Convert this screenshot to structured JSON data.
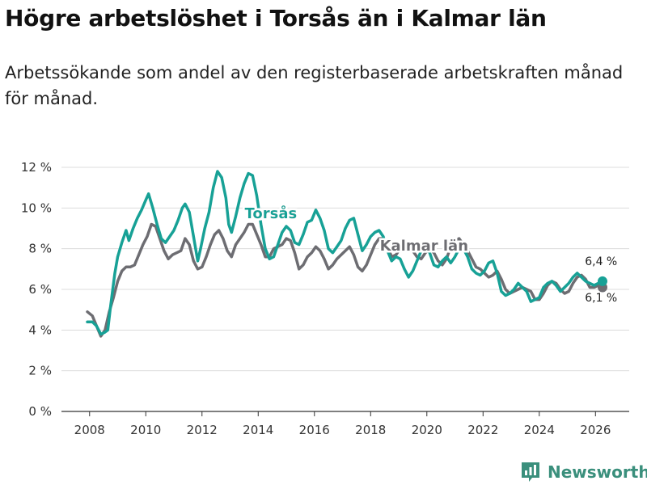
{
  "colors": {
    "torsas": "#17a196",
    "kalmar": "#6d6d72",
    "grid": "#dcdcdc",
    "axis": "#333333",
    "brand": "#3a8f7c"
  },
  "brand": {
    "name": "Newsworthy",
    "icon": "bar-chart-logo-icon"
  },
  "chart_data": {
    "type": "line",
    "title": "Högre arbetslöshet i Torsås än i Kalmar län",
    "subtitle": "Arbetssökande som andel av den registerbaserade arbetskraften månad för månad.",
    "xlabel": "",
    "ylabel": "",
    "ylim": [
      0,
      12
    ],
    "xlim": [
      2007.0,
      2027.2
    ],
    "yticks": [
      0,
      2,
      4,
      6,
      8,
      10,
      12
    ],
    "ytick_labels": [
      "0 %",
      "2 %",
      "4 %",
      "6 %",
      "8 %",
      "10 %",
      "12 %"
    ],
    "xticks": [
      2008,
      2010,
      2012,
      2014,
      2016,
      2018,
      2020,
      2022,
      2024,
      2026
    ],
    "xtick_labels": [
      "2008",
      "2010",
      "2012",
      "2014",
      "2016",
      "2018",
      "2020",
      "2022",
      "2024",
      "2026"
    ],
    "grid": true,
    "series": [
      {
        "name": "Kalmar län",
        "label": "Kalmar län",
        "end_label": "6,1 %",
        "points": [
          [
            2007.92,
            4.9
          ],
          [
            2008.1,
            4.7
          ],
          [
            2008.25,
            4.2
          ],
          [
            2008.4,
            3.7
          ],
          [
            2008.55,
            4.0
          ],
          [
            2008.7,
            4.9
          ],
          [
            2008.85,
            5.6
          ],
          [
            2009.0,
            6.4
          ],
          [
            2009.15,
            6.9
          ],
          [
            2009.3,
            7.1
          ],
          [
            2009.45,
            7.1
          ],
          [
            2009.6,
            7.2
          ],
          [
            2009.75,
            7.7
          ],
          [
            2009.9,
            8.2
          ],
          [
            2010.05,
            8.6
          ],
          [
            2010.2,
            9.2
          ],
          [
            2010.35,
            9.1
          ],
          [
            2010.5,
            8.5
          ],
          [
            2010.65,
            7.9
          ],
          [
            2010.8,
            7.5
          ],
          [
            2010.95,
            7.7
          ],
          [
            2011.1,
            7.8
          ],
          [
            2011.25,
            7.9
          ],
          [
            2011.4,
            8.5
          ],
          [
            2011.55,
            8.2
          ],
          [
            2011.7,
            7.4
          ],
          [
            2011.85,
            7.0
          ],
          [
            2012.0,
            7.1
          ],
          [
            2012.15,
            7.6
          ],
          [
            2012.3,
            8.2
          ],
          [
            2012.45,
            8.7
          ],
          [
            2012.6,
            8.9
          ],
          [
            2012.75,
            8.5
          ],
          [
            2012.9,
            7.9
          ],
          [
            2013.05,
            7.6
          ],
          [
            2013.2,
            8.2
          ],
          [
            2013.35,
            8.5
          ],
          [
            2013.5,
            8.8
          ],
          [
            2013.65,
            9.2
          ],
          [
            2013.8,
            9.2
          ],
          [
            2013.95,
            8.7
          ],
          [
            2014.1,
            8.2
          ],
          [
            2014.25,
            7.6
          ],
          [
            2014.4,
            7.6
          ],
          [
            2014.55,
            8.0
          ],
          [
            2014.7,
            8.1
          ],
          [
            2014.85,
            8.2
          ],
          [
            2015.0,
            8.5
          ],
          [
            2015.15,
            8.4
          ],
          [
            2015.3,
            7.8
          ],
          [
            2015.45,
            7.0
          ],
          [
            2015.6,
            7.2
          ],
          [
            2015.75,
            7.6
          ],
          [
            2015.9,
            7.8
          ],
          [
            2016.05,
            8.1
          ],
          [
            2016.2,
            7.9
          ],
          [
            2016.35,
            7.5
          ],
          [
            2016.5,
            7.0
          ],
          [
            2016.65,
            7.2
          ],
          [
            2016.8,
            7.5
          ],
          [
            2016.95,
            7.7
          ],
          [
            2017.1,
            7.9
          ],
          [
            2017.25,
            8.1
          ],
          [
            2017.4,
            7.7
          ],
          [
            2017.55,
            7.1
          ],
          [
            2017.7,
            6.9
          ],
          [
            2017.85,
            7.2
          ],
          [
            2018.0,
            7.7
          ],
          [
            2018.15,
            8.2
          ],
          [
            2018.3,
            8.5
          ],
          [
            2018.45,
            8.5
          ],
          [
            2018.6,
            8.1
          ],
          [
            2018.75,
            7.6
          ],
          [
            2018.9,
            7.7
          ],
          [
            2019.05,
            8.0
          ],
          [
            2019.2,
            8.2
          ],
          [
            2019.35,
            8.3
          ],
          [
            2019.5,
            7.9
          ],
          [
            2019.65,
            7.6
          ],
          [
            2019.8,
            7.5
          ],
          [
            2019.95,
            7.8
          ],
          [
            2020.1,
            8.0
          ],
          [
            2020.25,
            7.8
          ],
          [
            2020.4,
            7.4
          ],
          [
            2020.55,
            7.2
          ],
          [
            2020.7,
            7.5
          ],
          [
            2020.85,
            8.1
          ],
          [
            2021.0,
            8.4
          ],
          [
            2021.15,
            8.5
          ],
          [
            2021.3,
            8.2
          ],
          [
            2021.45,
            7.9
          ],
          [
            2021.6,
            7.5
          ],
          [
            2021.75,
            7.1
          ],
          [
            2021.9,
            7.0
          ],
          [
            2022.05,
            6.8
          ],
          [
            2022.2,
            6.6
          ],
          [
            2022.35,
            6.7
          ],
          [
            2022.5,
            6.9
          ],
          [
            2022.65,
            6.5
          ],
          [
            2022.8,
            6.0
          ],
          [
            2022.95,
            5.8
          ],
          [
            2023.1,
            5.9
          ],
          [
            2023.25,
            6.0
          ],
          [
            2023.4,
            6.1
          ],
          [
            2023.55,
            6.0
          ],
          [
            2023.7,
            5.9
          ],
          [
            2023.85,
            5.5
          ],
          [
            2024.0,
            5.5
          ],
          [
            2024.15,
            5.8
          ],
          [
            2024.3,
            6.2
          ],
          [
            2024.45,
            6.4
          ],
          [
            2024.6,
            6.3
          ],
          [
            2024.75,
            6.0
          ],
          [
            2024.9,
            5.8
          ],
          [
            2025.05,
            5.9
          ],
          [
            2025.2,
            6.3
          ],
          [
            2025.35,
            6.6
          ],
          [
            2025.5,
            6.7
          ],
          [
            2025.65,
            6.5
          ],
          [
            2025.8,
            6.1
          ],
          [
            2025.95,
            6.1
          ],
          [
            2026.1,
            6.2
          ],
          [
            2026.25,
            6.1
          ]
        ]
      },
      {
        "name": "Torsås",
        "label": "Torsås",
        "end_label": "6,4 %",
        "points": [
          [
            2007.92,
            4.4
          ],
          [
            2008.1,
            4.4
          ],
          [
            2008.25,
            4.2
          ],
          [
            2008.4,
            3.8
          ],
          [
            2008.55,
            3.9
          ],
          [
            2008.65,
            4.0
          ],
          [
            2008.75,
            5.2
          ],
          [
            2008.9,
            6.8
          ],
          [
            2009.0,
            7.6
          ],
          [
            2009.15,
            8.3
          ],
          [
            2009.3,
            8.9
          ],
          [
            2009.4,
            8.4
          ],
          [
            2009.55,
            9.0
          ],
          [
            2009.7,
            9.5
          ],
          [
            2009.85,
            9.9
          ],
          [
            2010.0,
            10.4
          ],
          [
            2010.1,
            10.7
          ],
          [
            2010.25,
            10.0
          ],
          [
            2010.4,
            9.2
          ],
          [
            2010.55,
            8.5
          ],
          [
            2010.7,
            8.3
          ],
          [
            2010.85,
            8.6
          ],
          [
            2011.0,
            8.9
          ],
          [
            2011.15,
            9.4
          ],
          [
            2011.3,
            10.0
          ],
          [
            2011.4,
            10.2
          ],
          [
            2011.55,
            9.8
          ],
          [
            2011.7,
            8.6
          ],
          [
            2011.85,
            7.4
          ],
          [
            2011.95,
            8.0
          ],
          [
            2012.1,
            9.0
          ],
          [
            2012.25,
            9.8
          ],
          [
            2012.4,
            11.0
          ],
          [
            2012.55,
            11.8
          ],
          [
            2012.7,
            11.5
          ],
          [
            2012.85,
            10.5
          ],
          [
            2012.95,
            9.2
          ],
          [
            2013.05,
            8.8
          ],
          [
            2013.2,
            9.6
          ],
          [
            2013.35,
            10.5
          ],
          [
            2013.5,
            11.2
          ],
          [
            2013.65,
            11.7
          ],
          [
            2013.8,
            11.6
          ],
          [
            2013.95,
            10.6
          ],
          [
            2014.1,
            9.2
          ],
          [
            2014.25,
            8.0
          ],
          [
            2014.4,
            7.5
          ],
          [
            2014.55,
            7.6
          ],
          [
            2014.7,
            8.2
          ],
          [
            2014.85,
            8.8
          ],
          [
            2015.0,
            9.1
          ],
          [
            2015.15,
            8.9
          ],
          [
            2015.3,
            8.3
          ],
          [
            2015.45,
            8.2
          ],
          [
            2015.6,
            8.7
          ],
          [
            2015.75,
            9.3
          ],
          [
            2015.9,
            9.4
          ],
          [
            2016.05,
            9.9
          ],
          [
            2016.2,
            9.5
          ],
          [
            2016.35,
            8.9
          ],
          [
            2016.5,
            8.0
          ],
          [
            2016.65,
            7.8
          ],
          [
            2016.8,
            8.1
          ],
          [
            2016.95,
            8.4
          ],
          [
            2017.1,
            9.0
          ],
          [
            2017.25,
            9.4
          ],
          [
            2017.4,
            9.5
          ],
          [
            2017.55,
            8.7
          ],
          [
            2017.7,
            7.9
          ],
          [
            2017.85,
            8.2
          ],
          [
            2018.0,
            8.6
          ],
          [
            2018.15,
            8.8
          ],
          [
            2018.3,
            8.9
          ],
          [
            2018.45,
            8.6
          ],
          [
            2018.6,
            7.9
          ],
          [
            2018.75,
            7.4
          ],
          [
            2018.9,
            7.6
          ],
          [
            2019.05,
            7.5
          ],
          [
            2019.2,
            7.0
          ],
          [
            2019.35,
            6.6
          ],
          [
            2019.5,
            6.9
          ],
          [
            2019.65,
            7.4
          ],
          [
            2019.8,
            7.9
          ],
          [
            2019.95,
            8.2
          ],
          [
            2020.1,
            7.8
          ],
          [
            2020.25,
            7.2
          ],
          [
            2020.4,
            7.1
          ],
          [
            2020.55,
            7.4
          ],
          [
            2020.7,
            7.6
          ],
          [
            2020.85,
            7.3
          ],
          [
            2021.0,
            7.6
          ],
          [
            2021.15,
            8.0
          ],
          [
            2021.3,
            8.0
          ],
          [
            2021.45,
            7.6
          ],
          [
            2021.6,
            7.0
          ],
          [
            2021.75,
            6.8
          ],
          [
            2021.9,
            6.7
          ],
          [
            2022.05,
            6.9
          ],
          [
            2022.2,
            7.3
          ],
          [
            2022.35,
            7.4
          ],
          [
            2022.5,
            6.8
          ],
          [
            2022.65,
            5.9
          ],
          [
            2022.8,
            5.7
          ],
          [
            2022.95,
            5.8
          ],
          [
            2023.1,
            6.0
          ],
          [
            2023.25,
            6.3
          ],
          [
            2023.4,
            6.1
          ],
          [
            2023.55,
            5.9
          ],
          [
            2023.7,
            5.4
          ],
          [
            2023.85,
            5.5
          ],
          [
            2024.0,
            5.6
          ],
          [
            2024.15,
            6.1
          ],
          [
            2024.3,
            6.3
          ],
          [
            2024.45,
            6.4
          ],
          [
            2024.6,
            6.2
          ],
          [
            2024.75,
            5.9
          ],
          [
            2024.9,
            6.1
          ],
          [
            2025.05,
            6.3
          ],
          [
            2025.2,
            6.6
          ],
          [
            2025.35,
            6.8
          ],
          [
            2025.5,
            6.6
          ],
          [
            2025.65,
            6.4
          ],
          [
            2025.8,
            6.3
          ],
          [
            2025.95,
            6.2
          ],
          [
            2026.1,
            6.3
          ],
          [
            2026.25,
            6.4
          ]
        ]
      }
    ]
  }
}
